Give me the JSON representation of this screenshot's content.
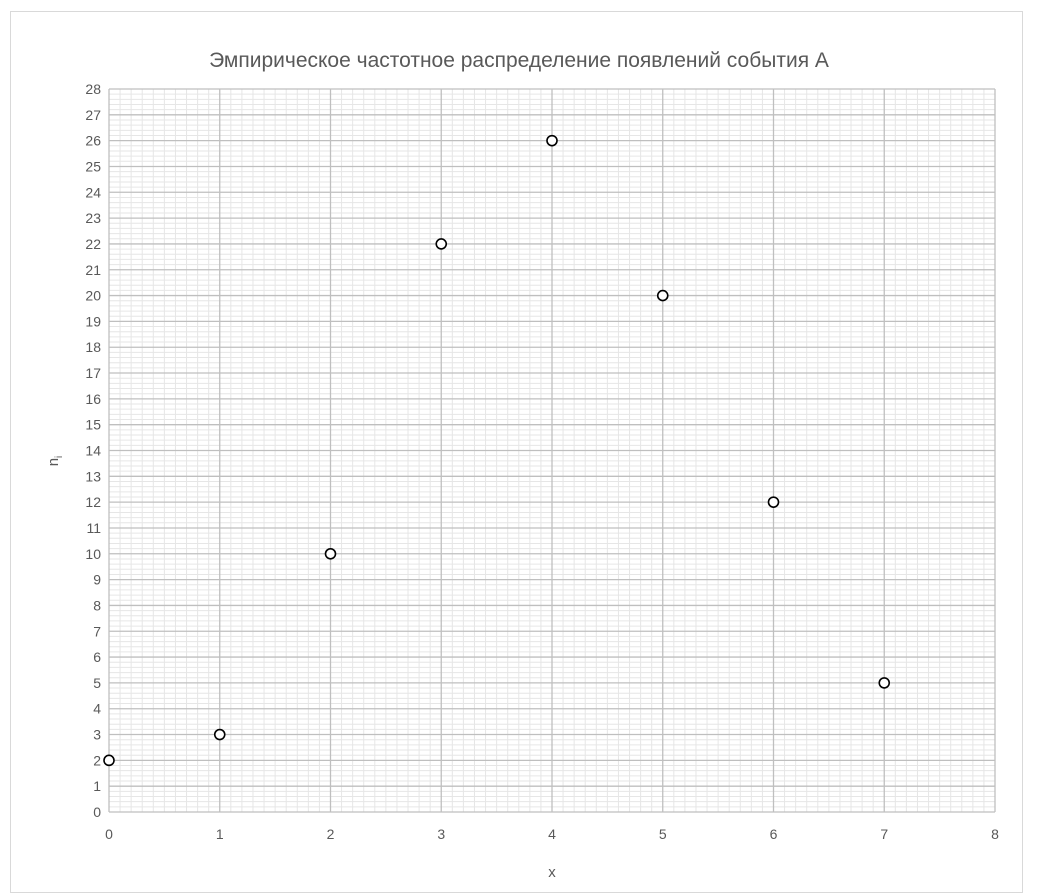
{
  "chart_data": {
    "type": "scatter",
    "title": "Эмпирическое частотное распределение появлений события А",
    "xlabel": "x",
    "ylabel": "n",
    "ylabel_subscript": "i",
    "x": [
      0,
      1,
      2,
      3,
      4,
      5,
      6,
      7
    ],
    "y": [
      2,
      3,
      10,
      22,
      26,
      20,
      12,
      5
    ],
    "xlim": [
      0,
      8
    ],
    "ylim": [
      0,
      28
    ],
    "x_major_step": 1,
    "y_major_step": 1,
    "minor_grid": true,
    "major_grid": true,
    "legend": "none",
    "marker": "hollow-circle",
    "colors": {
      "marker_stroke": "#000000",
      "marker_fill": "#ffffff",
      "major_grid": "#bfbfbf",
      "minor_grid": "#e6e6e6",
      "text": "#595959",
      "border": "#d9d9d9"
    }
  }
}
